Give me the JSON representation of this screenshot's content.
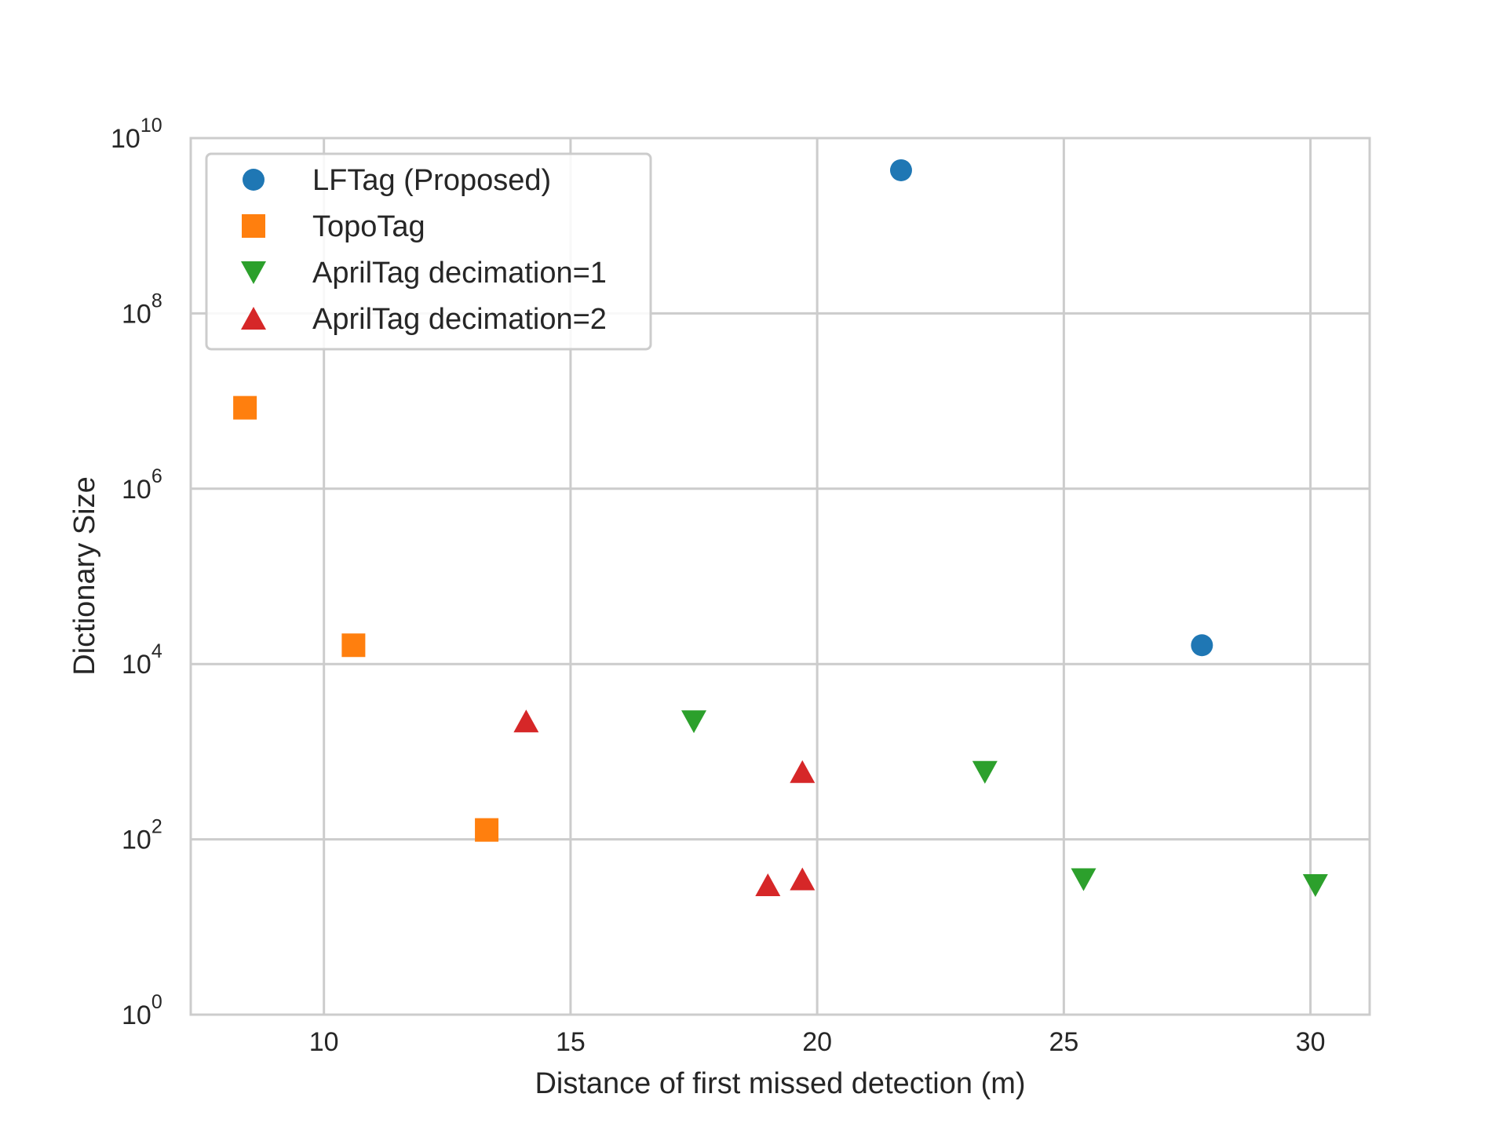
{
  "chart_data": {
    "type": "scatter",
    "title": "",
    "xlabel": "Distance of first missed detection (m)",
    "ylabel": "Dictionary Size",
    "xlim": [
      7.3,
      31.2
    ],
    "ylim": [
      1,
      10000000000
    ],
    "yscale": "log",
    "grid": true,
    "legend_position": "top-left",
    "x_ticks": [
      {
        "value": 10,
        "label": "10"
      },
      {
        "value": 15,
        "label": "15"
      },
      {
        "value": 20,
        "label": "20"
      },
      {
        "value": 25,
        "label": "25"
      },
      {
        "value": 30,
        "label": "30"
      }
    ],
    "y_ticks": [
      {
        "value": 1,
        "base": "10",
        "exp": "0"
      },
      {
        "value": 100,
        "base": "10",
        "exp": "2"
      },
      {
        "value": 10000,
        "base": "10",
        "exp": "4"
      },
      {
        "value": 1000000,
        "base": "10",
        "exp": "6"
      },
      {
        "value": 100000000,
        "base": "10",
        "exp": "8"
      },
      {
        "value": 10000000000,
        "base": "10",
        "exp": "10"
      }
    ],
    "series": [
      {
        "name": "LFTag (Proposed)",
        "marker": "circle",
        "color": "#1f77b4",
        "points": [
          {
            "x": 21.7,
            "y": 4300000000
          },
          {
            "x": 27.8,
            "y": 16384
          }
        ]
      },
      {
        "name": "TopoTag",
        "marker": "square",
        "color": "#ff7f0e",
        "points": [
          {
            "x": 8.4,
            "y": 8388608
          },
          {
            "x": 10.6,
            "y": 16384
          },
          {
            "x": 13.3,
            "y": 128
          }
        ]
      },
      {
        "name": "AprilTag decimation=1",
        "marker": "triangle-down",
        "color": "#2ca02c",
        "points": [
          {
            "x": 17.5,
            "y": 2221
          },
          {
            "x": 23.4,
            "y": 587
          },
          {
            "x": 25.4,
            "y": 35
          },
          {
            "x": 30.1,
            "y": 30
          }
        ]
      },
      {
        "name": "AprilTag decimation=2",
        "marker": "triangle-up",
        "color": "#d62728",
        "points": [
          {
            "x": 14.1,
            "y": 2221
          },
          {
            "x": 19.7,
            "y": 587
          },
          {
            "x": 19.0,
            "y": 30
          },
          {
            "x": 19.7,
            "y": 35
          }
        ]
      }
    ]
  }
}
